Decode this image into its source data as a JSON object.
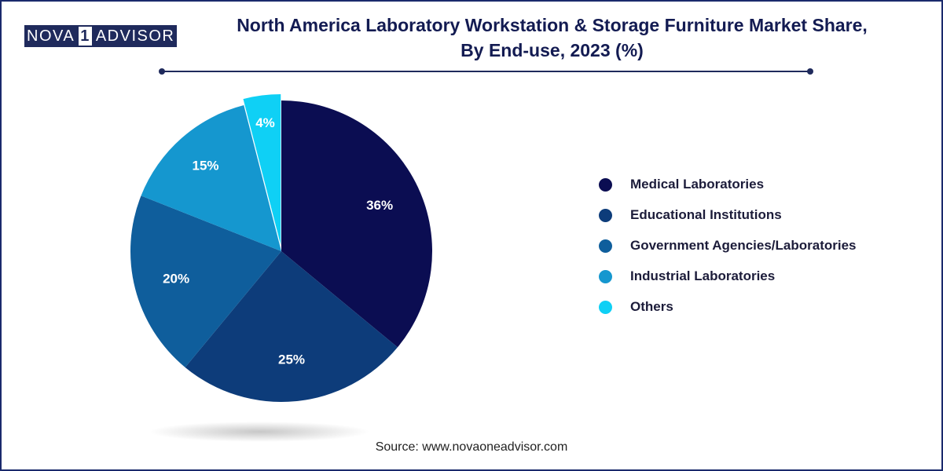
{
  "brand": {
    "logo_left": "NOVA",
    "logo_digit": "1",
    "logo_right": "ADVISOR"
  },
  "chart_data": {
    "type": "pie",
    "title": "North America Laboratory Workstation & Storage Furniture Market Share, By End-use, 2023 (%)",
    "title_line1": "North America Laboratory Workstation & Storage Furniture Market Share,",
    "title_line2": "By End-use, 2023 (%)",
    "slices": [
      {
        "label": "Medical Laboratories",
        "value": 36,
        "display": "36%",
        "color": "#0b0d52"
      },
      {
        "label": "Educational Institutions",
        "value": 25,
        "display": "25%",
        "color": "#0d3c7a"
      },
      {
        "label": "Government Agencies/Laboratories",
        "value": 20,
        "display": "20%",
        "color": "#0f5e9c"
      },
      {
        "label": "Industrial Laboratories",
        "value": 15,
        "display": "15%",
        "color": "#1597cf"
      },
      {
        "label": "Others",
        "value": 4,
        "display": "4%",
        "color": "#0fd0f5"
      }
    ],
    "legend_position": "right"
  },
  "source": "Source: www.novaoneadvisor.com"
}
